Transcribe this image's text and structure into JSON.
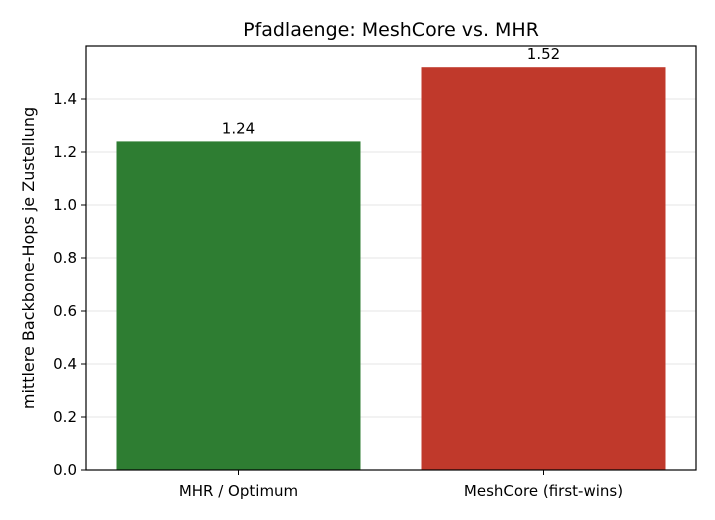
{
  "chart_data": {
    "type": "bar",
    "title": "Pfadlaenge: MeshCore vs. MHR",
    "xlabel": "",
    "ylabel": "mittlere Backbone-Hops je Zustellung",
    "categories": [
      "MHR / Optimum",
      "MeshCore (first-wins)"
    ],
    "values": [
      1.24,
      1.52
    ],
    "value_labels": [
      "1.24",
      "1.52"
    ],
    "colors": [
      "#2e7d32",
      "#c0392b"
    ],
    "ylim": [
      0,
      1.6
    ],
    "yticks": [
      0.0,
      0.2,
      0.4,
      0.6,
      0.8,
      1.0,
      1.2,
      1.4
    ],
    "ytick_labels": [
      "0.0",
      "0.2",
      "0.4",
      "0.6",
      "0.8",
      "1.0",
      "1.2",
      "1.4"
    ],
    "grid": true,
    "legend": "none"
  }
}
